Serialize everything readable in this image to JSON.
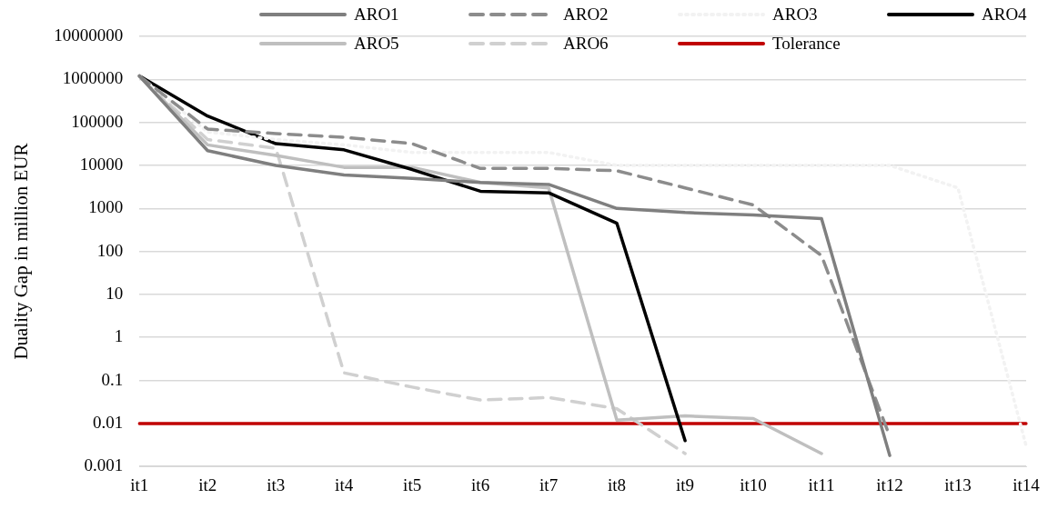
{
  "chart_data": {
    "type": "line",
    "ylabel": "Duality Gap in million EUR",
    "categories": [
      "it1",
      "it2",
      "it3",
      "it4",
      "it5",
      "it6",
      "it7",
      "it8",
      "it9",
      "it10",
      "it11",
      "it12",
      "it13",
      "it14"
    ],
    "series": [
      {
        "name": "ARO1",
        "color": "#7f7f7f",
        "line_style": "solid",
        "values": [
          1200000,
          22000,
          10000,
          6000,
          5000,
          4000,
          3600,
          1000,
          800,
          700,
          580,
          0.0018,
          null,
          null
        ]
      },
      {
        "name": "ARO2",
        "color": "#8c8c8c",
        "line_style": "dashed",
        "values": [
          1200000,
          70000,
          55000,
          45000,
          32000,
          8500,
          8500,
          7500,
          3000,
          1200,
          80,
          0.005,
          null,
          null
        ]
      },
      {
        "name": "ARO3",
        "color": "#f2f2f2",
        "line_style": "dotted",
        "values": [
          1200000,
          60000,
          40000,
          30000,
          20000,
          20000,
          20000,
          10000,
          10000,
          10000,
          10000,
          10000,
          3000,
          0.003
        ]
      },
      {
        "name": "ARO4",
        "color": "#000000",
        "line_style": "solid",
        "values": [
          1200000,
          140000,
          32000,
          23000,
          8000,
          2500,
          2300,
          450,
          0.004,
          null,
          null,
          null,
          null,
          null
        ]
      },
      {
        "name": "ARO5",
        "color": "#bfbfbf",
        "line_style": "solid",
        "values": [
          1200000,
          30000,
          17000,
          9000,
          9000,
          4000,
          3000,
          0.012,
          0.015,
          0.013,
          0.002,
          null,
          null,
          null
        ]
      },
      {
        "name": "ARO6",
        "color": "#d0d0d0",
        "line_style": "dashed",
        "values": [
          1200000,
          40000,
          25000,
          0.15,
          0.07,
          0.035,
          0.04,
          0.022,
          0.002,
          null,
          null,
          null,
          null,
          null
        ]
      },
      {
        "name": "Tolerance",
        "color": "#c00000",
        "line_style": "solid",
        "values": [
          0.01,
          0.01,
          0.01,
          0.01,
          0.01,
          0.01,
          0.01,
          0.01,
          0.01,
          0.01,
          0.01,
          0.01,
          0.01,
          0.01
        ]
      }
    ],
    "log": "y",
    "ylim": [
      0.001,
      10000000
    ],
    "yticks": [
      0.001,
      0.01,
      0.1,
      1,
      10,
      100,
      1000,
      10000,
      100000,
      1000000,
      10000000
    ],
    "grid": "y",
    "legend": "top",
    "marker": "none"
  }
}
